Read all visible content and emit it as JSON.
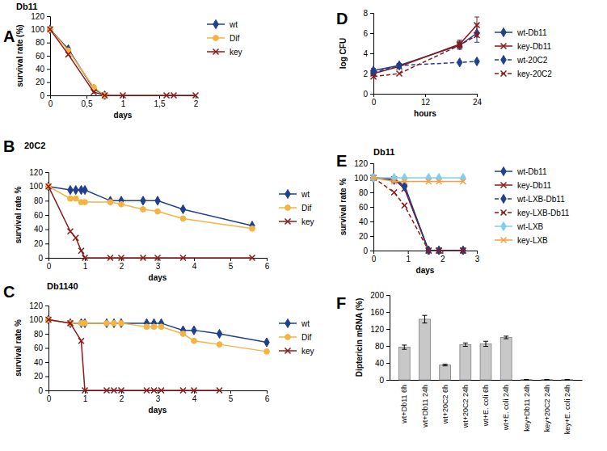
{
  "chart_data": [
    {
      "panel": "A",
      "type": "line",
      "title": "Db11",
      "x_label": "days",
      "y_label": "survival rate (%)",
      "x": [
        0,
        0.25,
        0.6,
        0.75,
        1,
        1.6,
        1.7,
        2
      ],
      "xlim": [
        0,
        2
      ],
      "xticks": [
        0,
        {
          "value": 0.5,
          "label": "0,5"
        },
        1,
        {
          "value": 1.5,
          "label": "1,5"
        },
        2
      ],
      "ylim": [
        0,
        120
      ],
      "yticks": [
        0,
        20,
        40,
        60,
        80,
        100,
        120
      ],
      "legend": "right",
      "series": [
        {
          "name": "wt",
          "color": "#1f3f8f",
          "marker": "diamond",
          "line_style": "solid",
          "values": [
            100,
            70,
            10,
            0,
            null,
            null,
            null,
            null
          ]
        },
        {
          "name": "Dif",
          "color": "#f5b342",
          "marker": "circle",
          "line_style": "solid",
          "values": [
            100,
            68,
            12,
            0,
            null,
            null,
            null,
            null
          ]
        },
        {
          "name": "key",
          "color": "#8b1a1a",
          "marker": "x",
          "line_style": "solid",
          "values": [
            100,
            62,
            5,
            0,
            0,
            0,
            0,
            0
          ]
        }
      ]
    },
    {
      "panel": "B",
      "type": "line",
      "title": "20C2",
      "x_label": "days",
      "y_label": "survival rate %",
      "x": [
        0,
        0.6,
        0.75,
        0.9,
        1,
        1.7,
        2,
        2.6,
        3,
        3.7,
        5.6
      ],
      "xlim": [
        0,
        6
      ],
      "xticks": [
        0,
        1,
        2,
        3,
        4,
        5,
        6
      ],
      "ylim": [
        0,
        120
      ],
      "yticks": [
        0,
        20,
        40,
        60,
        80,
        100,
        120
      ],
      "legend": "right",
      "series": [
        {
          "name": "wt",
          "color": "#1f3f8f",
          "marker": "diamond",
          "line_style": "solid",
          "values": [
            100,
            95,
            95,
            95,
            95,
            80,
            80,
            80,
            80,
            68,
            45
          ]
        },
        {
          "name": "Dif",
          "color": "#f5b342",
          "marker": "circle",
          "line_style": "solid",
          "values": [
            100,
            83,
            83,
            78,
            78,
            78,
            75,
            68,
            65,
            55,
            41
          ]
        },
        {
          "name": "key",
          "color": "#8b1a1a",
          "marker": "x",
          "line_style": "solid",
          "values": [
            100,
            37,
            28,
            10,
            0,
            0,
            0,
            0,
            0,
            0,
            0
          ]
        }
      ]
    },
    {
      "panel": "C",
      "type": "line",
      "title": "Db1140",
      "x_label": "days",
      "y_label": "survival rate %",
      "x": [
        0,
        0.6,
        0.9,
        1,
        1.6,
        1.8,
        2,
        2.7,
        2.9,
        3.1,
        3.7,
        4,
        4.7,
        6
      ],
      "xlim": [
        0,
        6
      ],
      "xticks": [
        0,
        1,
        2,
        3,
        4,
        5,
        6
      ],
      "ylim": [
        0,
        120
      ],
      "yticks": [
        0,
        20,
        40,
        60,
        80,
        100,
        120
      ],
      "legend": "right",
      "series": [
        {
          "name": "wt",
          "color": "#1f3f8f",
          "marker": "diamond",
          "line_style": "solid",
          "values": [
            100,
            95,
            95,
            95,
            95,
            95,
            95,
            95,
            95,
            95,
            85,
            85,
            80,
            68
          ]
        },
        {
          "name": "Dif",
          "color": "#f5b342",
          "marker": "circle",
          "line_style": "solid",
          "values": [
            100,
            95,
            95,
            95,
            95,
            95,
            95,
            90,
            90,
            90,
            80,
            70,
            65,
            55
          ]
        },
        {
          "name": "key",
          "color": "#8b1a1a",
          "marker": "x",
          "line_style": "solid",
          "values": [
            100,
            95,
            70,
            0,
            0,
            0,
            0,
            0,
            0,
            0,
            0,
            0,
            0,
            null
          ]
        }
      ]
    },
    {
      "panel": "D",
      "type": "line",
      "x_label": "hours",
      "y_label": "log  CFU",
      "x": [
        0,
        6,
        20,
        24
      ],
      "xlim": [
        0,
        24
      ],
      "xticks": [
        0,
        12,
        24
      ],
      "ylim": [
        0,
        8
      ],
      "yticks": [
        0,
        2,
        4,
        6,
        8
      ],
      "legend": "right",
      "series": [
        {
          "name": "wt-Db11",
          "color": "#1f3f8f",
          "marker": "diamond",
          "line_style": "solid",
          "values": [
            2.3,
            2.8,
            4.8,
            6.0
          ],
          "errors": [
            0.2,
            0.2,
            0.4,
            0.9
          ]
        },
        {
          "name": "key-Db11",
          "color": "#8b1a1a",
          "marker": "x",
          "line_style": "solid",
          "values": [
            2.0,
            2.7,
            4.9,
            6.8
          ],
          "errors": [
            0.1,
            0.2,
            0.4,
            0.8
          ]
        },
        {
          "name": "wt-20C2",
          "color": "#1f3f8f",
          "marker": "diamond",
          "line_style": "dashed",
          "values": [
            2.1,
            2.8,
            3.1,
            3.2
          ]
        },
        {
          "name": "key-20C2",
          "color": "#8b1a1a",
          "marker": "x",
          "line_style": "dashed",
          "values": [
            1.7,
            2.0,
            4.8,
            5.8
          ]
        }
      ]
    },
    {
      "panel": "E",
      "type": "line",
      "title": "Db11",
      "x_label": "days",
      "y_label": "survival rate %",
      "x": [
        0,
        0.6,
        0.9,
        1.6,
        1.9,
        2.6
      ],
      "xlim": [
        0,
        3
      ],
      "xticks": [
        0,
        1,
        2,
        3
      ],
      "ylim": [
        0,
        120
      ],
      "yticks": [
        0,
        20,
        40,
        60,
        80,
        100,
        120
      ],
      "legend": "right",
      "series": [
        {
          "name": "wt-Db11",
          "color": "#1f3f8f",
          "marker": "diamond",
          "line_style": "solid",
          "values": [
            100,
            98,
            90,
            0,
            0,
            0
          ]
        },
        {
          "name": "key-Db11",
          "color": "#8b1a1a",
          "marker": "x",
          "line_style": "solid",
          "values": [
            100,
            98,
            85,
            0,
            0,
            0
          ]
        },
        {
          "name": "wt-LXB-Db11",
          "color": "#1f3f8f",
          "marker": "diamond",
          "line_style": "dashed",
          "values": [
            100,
            97,
            88,
            0,
            0,
            0
          ]
        },
        {
          "name": "key-LXB-Db11",
          "color": "#8b1a1a",
          "marker": "x",
          "line_style": "dashed",
          "values": [
            100,
            80,
            62,
            0,
            0,
            0
          ]
        },
        {
          "name": "wt-LXB",
          "color": "#7fd0f0",
          "marker": "diamond",
          "line_style": "solid",
          "values": [
            100,
            100,
            100,
            100,
            100,
            100
          ]
        },
        {
          "name": "key-LXB",
          "color": "#f5a142",
          "marker": "x",
          "line_style": "solid",
          "values": [
            100,
            95,
            95,
            95,
            95,
            95
          ]
        }
      ]
    },
    {
      "panel": "F",
      "type": "bar",
      "y_label": "Diptericin mRNA (%)",
      "categories": [
        "wt+Db11 6h",
        "wt+Db11 24h",
        "wt+20C2 6h",
        "wt+20C2 24h",
        "wt+E. coli 6h",
        "wt+E. coli 24h",
        "key+Db11 24h",
        "key+20C2 24h",
        "key+E. coli 24h"
      ],
      "values": [
        77,
        143,
        35,
        83,
        85,
        100,
        0.5,
        0.5,
        0.5
      ],
      "errors": [
        5,
        9,
        2,
        4,
        6,
        3,
        0.2,
        0.2,
        0.2
      ],
      "color": "#c8c8c8",
      "ylim": [
        0,
        200
      ],
      "yticks": [
        0,
        40,
        80,
        120,
        160,
        200
      ]
    }
  ]
}
